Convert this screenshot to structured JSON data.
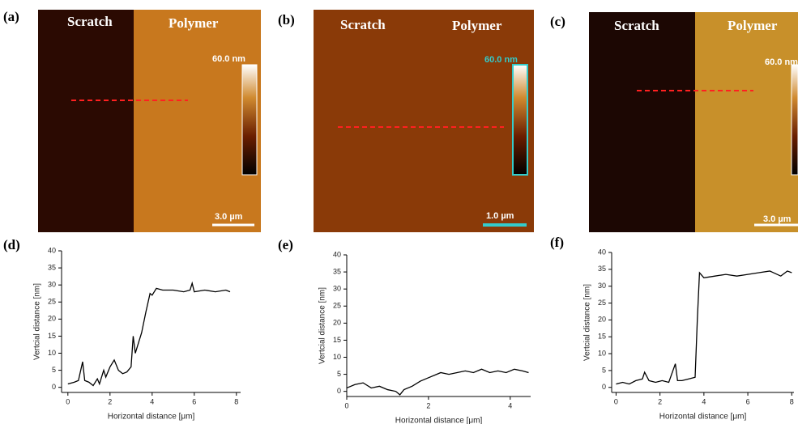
{
  "images": [
    {
      "label": "(a)",
      "left": "Scratch",
      "right": "Polymer",
      "colorbar": "60.0 nm",
      "scalebar": "3.0 µm"
    },
    {
      "label": "(b)",
      "left": "Scratch",
      "right": "Polymer",
      "colorbar": "60.0 nm",
      "scalebar": "1.0 µm"
    },
    {
      "label": "(c)",
      "left": "Scratch",
      "right": "Polymer",
      "colorbar": "60.0 nm",
      "scalebar": "3.0 µm"
    }
  ],
  "chart_data": [
    {
      "type": "line",
      "label": "(d)",
      "xlabel": "Horizontal distance [μm]",
      "ylabel": "Vertcial distance [nm]",
      "x": [
        0,
        0.3,
        0.5,
        0.7,
        0.8,
        1.0,
        1.2,
        1.4,
        1.5,
        1.7,
        1.8,
        2.0,
        2.2,
        2.4,
        2.6,
        2.8,
        3.0,
        3.1,
        3.2,
        3.3,
        3.5,
        3.7,
        3.9,
        4.0,
        4.2,
        4.5,
        5.0,
        5.5,
        5.8,
        5.9,
        6.0,
        6.5,
        7.0,
        7.5,
        7.7
      ],
      "series": [
        {
          "color": "#000000",
          "values": [
            1,
            1.5,
            2,
            7.5,
            2,
            1.5,
            0.5,
            2.5,
            1,
            5,
            3,
            6,
            8,
            5,
            4,
            4.5,
            6,
            15,
            10,
            12,
            16,
            22,
            27.5,
            27,
            29,
            28.5,
            28.5,
            28,
            28.5,
            30.5,
            28,
            28.5,
            28,
            28.5,
            28
          ]
        }
      ],
      "xlim": [
        -0.3,
        8.2
      ],
      "ylim": [
        -1.5,
        40
      ],
      "xticks": [
        0,
        2,
        4,
        6,
        8
      ],
      "yticks": [
        0,
        5,
        10,
        15,
        20,
        25,
        30,
        35,
        40
      ]
    },
    {
      "type": "line",
      "label": "(e)",
      "xlabel": "Horizontal distance [μm]",
      "ylabel": "Vertcial distance [nm]",
      "x": [
        0,
        0.2,
        0.4,
        0.6,
        0.8,
        1.0,
        1.2,
        1.3,
        1.4,
        1.6,
        1.8,
        2.0,
        2.2,
        2.3,
        2.5,
        2.7,
        2.9,
        3.1,
        3.3,
        3.5,
        3.7,
        3.9,
        4.1,
        4.3,
        4.45
      ],
      "series": [
        {
          "color": "#000000",
          "values": [
            1,
            2,
            2.5,
            1,
            1.5,
            0.5,
            0,
            -1,
            0.5,
            1.5,
            3,
            4,
            5,
            5.5,
            5,
            5.5,
            6,
            5.5,
            6.5,
            5.5,
            6,
            5.5,
            6.5,
            6,
            5.5
          ]
        }
      ],
      "xlim": [
        0,
        4.5
      ],
      "ylim": [
        -1.5,
        40
      ],
      "xticks": [
        0,
        2,
        4
      ],
      "yticks": [
        0,
        5,
        10,
        15,
        20,
        25,
        30,
        35,
        40
      ]
    },
    {
      "type": "line",
      "label": "(f)",
      "xlabel": "Horizontal distance [μm]",
      "ylabel": "Vertcial distance [nm]",
      "x": [
        0,
        0.3,
        0.6,
        0.9,
        1.2,
        1.3,
        1.5,
        1.8,
        2.1,
        2.4,
        2.7,
        2.8,
        3.0,
        3.3,
        3.6,
        3.7,
        3.8,
        4.0,
        4.5,
        5.0,
        5.5,
        6.0,
        6.5,
        7.0,
        7.5,
        7.8,
        8.0
      ],
      "series": [
        {
          "color": "#000000",
          "values": [
            1,
            1.5,
            1,
            2,
            2.5,
            4.5,
            2,
            1.5,
            2,
            1.5,
            7,
            2,
            2,
            2.5,
            3,
            20,
            34,
            32.5,
            33,
            33.5,
            33,
            33.5,
            34,
            34.5,
            33,
            34.5,
            34
          ]
        }
      ],
      "xlim": [
        -0.2,
        8.1
      ],
      "ylim": [
        -1.5,
        40
      ],
      "xticks": [
        0,
        2,
        4,
        6,
        8
      ],
      "yticks": [
        0,
        5,
        10,
        15,
        20,
        25,
        30,
        35,
        40
      ]
    }
  ]
}
